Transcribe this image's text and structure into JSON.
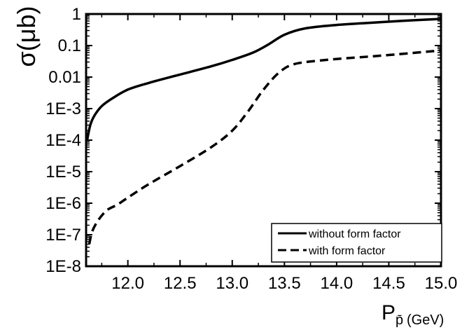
{
  "chart_data": {
    "type": "line",
    "title": "",
    "xlabel": "P",
    "xlabel_subscript": "p̄",
    "xlabel_unit": "(GeV)",
    "ylabel": "σ(μb)",
    "xlim": [
      11.6,
      15.0
    ],
    "ylim": [
      1e-08,
      1
    ],
    "yscale": "log",
    "grid": false,
    "legend_position": "bottom-right",
    "x_ticks": [
      12.0,
      12.5,
      13.0,
      13.5,
      14.0,
      14.5,
      15.0
    ],
    "x_tick_labels": [
      "12.0",
      "12.5",
      "13.0",
      "13.5",
      "14.0",
      "14.5",
      "15.0"
    ],
    "y_ticks": [
      1,
      0.1,
      0.01,
      0.001,
      0.0001,
      1e-05,
      1e-06,
      1e-07,
      1e-08
    ],
    "y_tick_labels": [
      "1",
      "0.1",
      "0.01",
      "1E-3",
      "1E-4",
      "1E-5",
      "1E-6",
      "1E-7",
      "1E-8"
    ],
    "series": [
      {
        "name": "without form factor",
        "style": "solid",
        "color": "#000000",
        "x": [
          11.61,
          11.64,
          11.68,
          11.75,
          11.85,
          12.0,
          12.2,
          12.5,
          12.8,
          13.0,
          13.2,
          13.35,
          13.5,
          13.7,
          14.0,
          14.3,
          14.6,
          15.0
        ],
        "y": [
          0.0001,
          0.0003,
          0.0006,
          0.0012,
          0.0021,
          0.004,
          0.0065,
          0.012,
          0.022,
          0.035,
          0.06,
          0.11,
          0.22,
          0.35,
          0.45,
          0.52,
          0.6,
          0.7
        ]
      },
      {
        "name": "with form factor",
        "style": "dashed",
        "color": "#000000",
        "x": [
          11.63,
          11.66,
          11.72,
          11.8,
          11.9,
          12.0,
          12.2,
          12.5,
          12.8,
          13.0,
          13.15,
          13.3,
          13.45,
          13.6,
          13.9,
          14.2,
          14.5,
          15.0
        ],
        "y": [
          5e-08,
          1.3e-07,
          3e-07,
          6e-07,
          9e-07,
          1.5e-06,
          4e-06,
          1.5e-05,
          6e-05,
          0.0002,
          0.0008,
          0.004,
          0.014,
          0.026,
          0.035,
          0.042,
          0.05,
          0.07
        ]
      }
    ]
  }
}
